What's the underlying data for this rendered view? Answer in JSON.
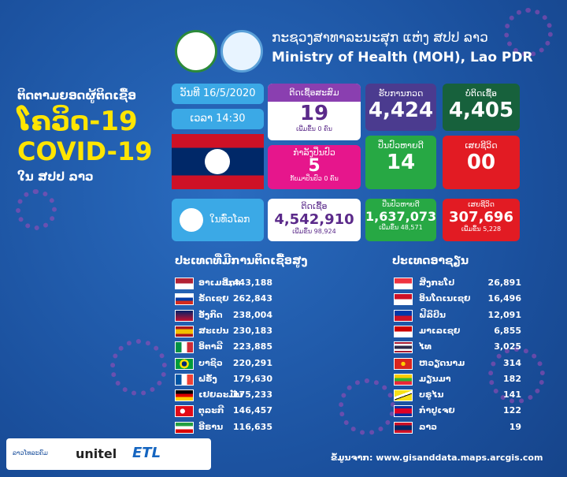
{
  "header": {
    "lao_title": "ກະຊວງສາທາລະນະສຸກ ແຫ່ງ ສປປ ລາວ",
    "english_title": "Ministry of Health (MOH), Lao PDR"
  },
  "left_title": {
    "line1": "ຕິດຕາມຍອດຜູ້ຕິດເຊື້ອ",
    "line2": "ໂຄວິດ-19",
    "line3": "COVID-19",
    "line4": "ໃນ ສປປ ລາວ"
  },
  "date": "ວັນທີ 16/5/2020",
  "time": "ເວລາ 14:30",
  "laos": {
    "cumulative": {
      "label": "ຕິດເຊື້ອສະສົມ",
      "value": "19",
      "note": "ເພີ່ມຂຶ້ນ 0 ຄົນ"
    },
    "treating": {
      "label": "ກຳລັງປິ່ນປົວ",
      "value": "5",
      "note": "ກັບມາປິ່ນປົວ 0 ຄົນ"
    },
    "tested": {
      "label": "ຮັບການກວດ",
      "value": "4,424"
    },
    "negative": {
      "label": "ບໍ່ຕິດເຊື້ອ",
      "value": "4,405"
    },
    "recovered": {
      "label": "ປິ່ນປົວຫາຍດີ",
      "value": "14"
    },
    "deaths": {
      "label": "ເສຍຊີວິດ",
      "value": "00"
    }
  },
  "world": {
    "label": "ໃນທົ່ວໂລກ",
    "infected": {
      "label": "ຕິດເຊື້ອ",
      "value": "4,542,910",
      "note": "ເພີ່ມຂຶ້ນ 98,924"
    },
    "recovered": {
      "label": "ປິ່ນປົວຫາຍດີ",
      "value": "1,637,073",
      "note": "ເພີ່ມຂຶ້ນ 48,571"
    },
    "deaths": {
      "label": "ເສຍຊີວິດ",
      "value": "307,696",
      "note": "ເພີ່ມຂຶ້ນ 5,228"
    }
  },
  "top_countries": {
    "title": "ປະເທດທີ່ມີການຕິດເຊື້ອສູງ",
    "rows": [
      [
        "ອາເມຣິກາ",
        "1,443,188"
      ],
      [
        "ຣັດເຊຍ",
        "262,843"
      ],
      [
        "ອັງກິດ",
        "238,004"
      ],
      [
        "ສະເປນ",
        "230,183"
      ],
      [
        "ອິຕາລີ",
        "223,885"
      ],
      [
        "ບາຊິວ",
        "220,291"
      ],
      [
        "ຝຣັ່ງ",
        "179,630"
      ],
      [
        "ເຢຍລະມັນ",
        "175,233"
      ],
      [
        "ຕຸລະກີ",
        "146,457"
      ],
      [
        "ອີຣານ",
        "116,635"
      ]
    ]
  },
  "asean": {
    "title": "ປະເທດອາຊຽນ",
    "rows": [
      [
        "ສິງກະໂປ",
        "26,891"
      ],
      [
        "ອິນໂດເນເຊຍ",
        "16,496"
      ],
      [
        "ຟີລິປິນ",
        "12,091"
      ],
      [
        "ມາເລເຊຍ",
        "6,855"
      ],
      [
        "ໄທ",
        "3,025"
      ],
      [
        "ຫວຽດນາມ",
        "314"
      ],
      [
        "ມຽນມາ",
        "182"
      ],
      [
        "ບຣູໄນ",
        "141"
      ],
      [
        "ກຳປູເຈຍ",
        "122"
      ],
      [
        "ລາວ",
        "19"
      ]
    ]
  },
  "source": "ຂໍ້ມູນຈາກ: www.gisanddata.maps.arcgis.com",
  "logos": [
    "ລາວໂທລະຄົມ",
    "unitel",
    "ETL"
  ]
}
